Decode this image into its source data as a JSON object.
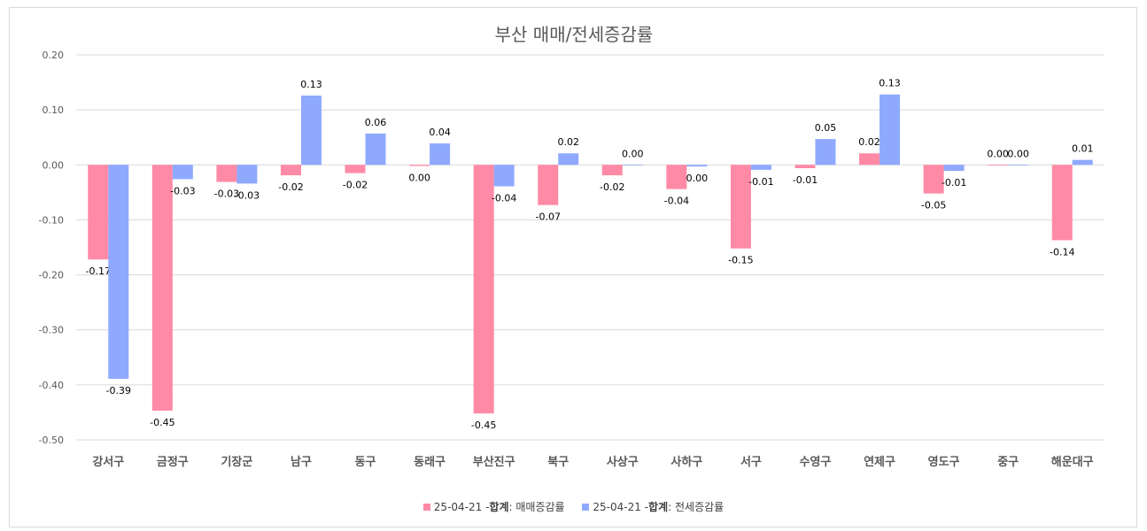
{
  "chart_data": {
    "type": "bar",
    "title": "부산 매매/전세증감률",
    "categories": [
      "강서구",
      "금정구",
      "기장군",
      "남구",
      "동구",
      "동래구",
      "부산진구",
      "북구",
      "사상구",
      "사하구",
      "서구",
      "수영구",
      "연제구",
      "영도구",
      "중구",
      "해운대구"
    ],
    "series": [
      {
        "name": "25-04-21 - 합계 : 매매증감률",
        "legend_prefix": "25-04-21 - ",
        "legend_bold": "합계",
        "legend_suffix": " : 매매증감률",
        "color": "#FF8AA6",
        "values": [
          -0.172,
          -0.447,
          -0.031,
          -0.019,
          -0.015,
          -0.002,
          -0.452,
          -0.073,
          -0.019,
          -0.044,
          -0.152,
          -0.006,
          0.021,
          -0.052,
          0.0,
          -0.137
        ],
        "labels": [
          "-0.17",
          "-0.45",
          "-0.03",
          "-0.02",
          "-0.02",
          "0.00",
          "-0.45",
          "-0.07",
          "-0.02",
          "-0.04",
          "-0.15",
          "-0.01",
          "0.02",
          "-0.05",
          "0.00",
          "-0.14"
        ]
      },
      {
        "name": "25-04-21 - 합계 : 전세증감률",
        "legend_prefix": "25-04-21 - ",
        "legend_bold": "합계",
        "legend_suffix": " : 전세증감률",
        "color": "#8FA9FF",
        "values": [
          -0.389,
          -0.026,
          -0.034,
          0.126,
          0.057,
          0.039,
          -0.039,
          0.021,
          0.0,
          -0.003,
          -0.009,
          0.047,
          0.128,
          -0.011,
          0.0,
          0.009
        ],
        "labels": [
          "-0.39",
          "-0.03",
          "-0.03",
          "0.13",
          "0.06",
          "0.04",
          "-0.04",
          "0.02",
          "0.00",
          "0.00",
          "-0.01",
          "0.05",
          "0.13",
          "-0.01",
          "0.00",
          "0.01"
        ]
      }
    ],
    "ylim": [
      -0.5,
      0.2
    ],
    "yticks": [
      0.2,
      0.1,
      0.0,
      -0.1,
      -0.2,
      -0.3,
      -0.4,
      -0.5
    ],
    "ytick_labels": [
      "0.20",
      "0.10",
      "0.00",
      "-0.10",
      "-0.20",
      "-0.30",
      "-0.40",
      "-0.50"
    ],
    "grid": true,
    "legend_position": "bottom"
  }
}
